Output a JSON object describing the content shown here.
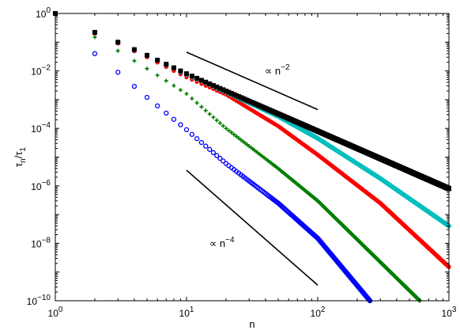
{
  "chart_data": {
    "type": "scatter",
    "xscale": "log",
    "yscale": "log",
    "xlim": [
      1,
      1000
    ],
    "ylim": [
      1e-10,
      1
    ],
    "xlabel": "n",
    "ylabel": "τn/τ1",
    "grid": false,
    "x_ticks": [
      {
        "value": 1,
        "base": "10",
        "exp": "0"
      },
      {
        "value": 10,
        "base": "10",
        "exp": "1"
      },
      {
        "value": 100,
        "base": "10",
        "exp": "2"
      },
      {
        "value": 1000,
        "base": "10",
        "exp": "3"
      }
    ],
    "y_ticks": [
      {
        "value": 1,
        "base": "10",
        "exp": "0"
      },
      {
        "value": 0.01,
        "base": "10",
        "exp": "−2"
      },
      {
        "value": 0.0001,
        "base": "10",
        "exp": "−4"
      },
      {
        "value": 1e-06,
        "base": "10",
        "exp": "−6"
      },
      {
        "value": 1e-08,
        "base": "10",
        "exp": "−8"
      },
      {
        "value": 1e-10,
        "base": "10",
        "exp": "−10"
      }
    ],
    "series": [
      {
        "color": "#000000",
        "marker": "square",
        "x_range": [
          1,
          1000
        ],
        "y_at_2": 0.22,
        "y_at_20": 0.002,
        "asymptotic_slope": -2
      },
      {
        "color": "#00bfbf",
        "marker": "diamond",
        "x_range": [
          1,
          1000
        ],
        "y_at_2": 0.22,
        "y_at_20": 0.0018,
        "y_at_1000": 4e-08
      },
      {
        "color": "#ff0000",
        "marker": "dot",
        "x_range": [
          1,
          1000
        ],
        "y_at_2": 0.2,
        "y_at_20": 0.0015,
        "y_at_1000": 1.5e-09
      },
      {
        "color": "#007f00",
        "marker": "plus",
        "x_range": [
          1,
          600
        ],
        "y_at_2": 0.15,
        "y_at_20": 0.0001,
        "y_at_600": 1e-10
      },
      {
        "color": "#0000ff",
        "marker": "circle",
        "x_range": [
          1,
          250
        ],
        "y_at_2": 0.04,
        "y_at_20": 6e-06,
        "y_at_250": 1e-10
      }
    ],
    "reference_lines": [
      {
        "label_prefix": "∝ n",
        "label_exp": "−2",
        "slope": -2,
        "x": [
          10,
          100
        ],
        "y": [
          0.045,
          0.00045
        ]
      },
      {
        "label_prefix": "∝ n",
        "label_exp": "−4",
        "slope": -4,
        "x": [
          10,
          100
        ],
        "y": [
          3.5e-06,
          3.5e-10
        ]
      }
    ]
  }
}
